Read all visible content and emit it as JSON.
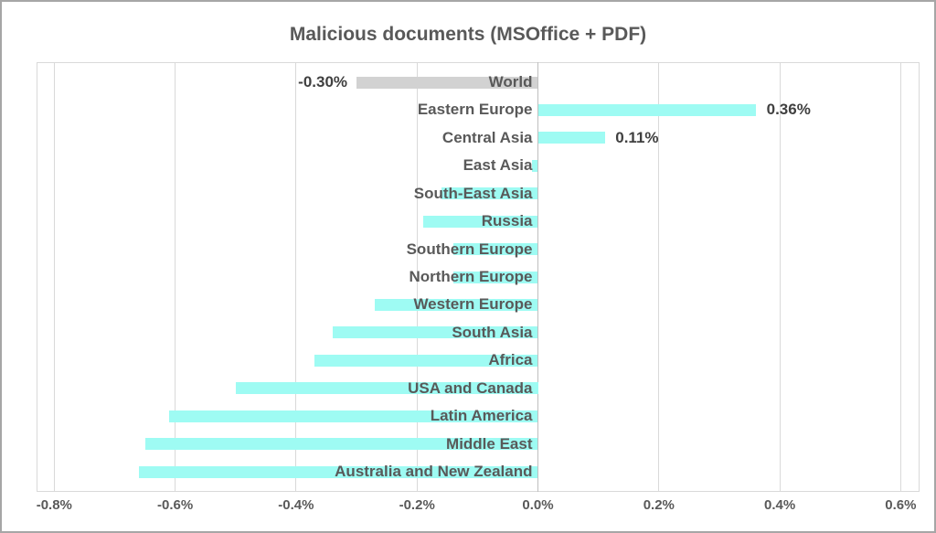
{
  "chart_data": {
    "type": "bar",
    "orientation": "horizontal",
    "title": "Malicious documents (MSOffice + PDF)",
    "categories": [
      "World",
      "Eastern Europe",
      "Central Asia",
      "East Asia",
      "South-East Asia",
      "Russia",
      "Southern Europe",
      "Northern Europe",
      "Western Europe",
      "South Asia",
      "Africa",
      "USA and Canada",
      "Latin America",
      "Middle East",
      "Australia and New Zealand"
    ],
    "values": [
      -0.3,
      0.36,
      0.11,
      -0.01,
      -0.16,
      -0.19,
      -0.14,
      -0.14,
      -0.27,
      -0.34,
      -0.37,
      -0.5,
      -0.61,
      -0.65,
      -0.66
    ],
    "unit": "%",
    "data_labels": [
      "-0.30%",
      "0.36%",
      "0.11%",
      "",
      "",
      "",
      "",
      "",
      "",
      "",
      "",
      "",
      "",
      "",
      ""
    ],
    "bar_colors": [
      "#d2d2d2",
      "#9efbf3",
      "#9efbf3",
      "#9efbf3",
      "#9efbf3",
      "#9efbf3",
      "#9efbf3",
      "#9efbf3",
      "#9efbf3",
      "#9efbf3",
      "#9efbf3",
      "#9efbf3",
      "#9efbf3",
      "#9efbf3",
      "#9efbf3"
    ],
    "x_tick_values": [
      -0.8,
      -0.6,
      -0.4,
      -0.2,
      0.0,
      0.2,
      0.4,
      0.6
    ],
    "x_tick_labels": [
      "-0.8%",
      "-0.6%",
      "-0.4%",
      "-0.2%",
      "0.0%",
      "0.2%",
      "0.4%",
      "0.6%"
    ],
    "xlim": [
      -0.8,
      0.6
    ],
    "grid": "vertical",
    "legend": "none",
    "colors": {
      "bar_default": "#9efbf3",
      "bar_world": "#d2d2d2",
      "text": "#595959",
      "gridline": "#d9d9d9",
      "zero_axis": "#bfbfbf",
      "frame_border": "#a6a6a6"
    }
  }
}
